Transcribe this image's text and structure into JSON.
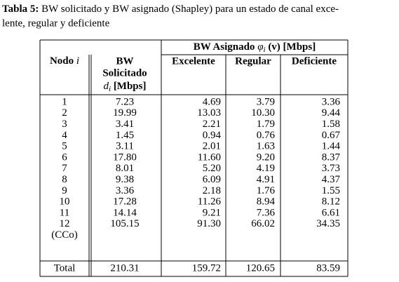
{
  "caption": {
    "label": "Tabla 5:",
    "line1": "BW solicitado y BW asignado (Shapley) para un estado de canal exce-",
    "line2": "lente, regular y deficiente"
  },
  "header": {
    "group": [
      "BW Asignado",
      "φ",
      "i",
      "(v) [Mbps]"
    ],
    "node": [
      "Nodo",
      "i"
    ],
    "bw": [
      "BW",
      "Solicitado",
      "d",
      "i",
      "[Mbps]"
    ],
    "excelente": "Excelente",
    "regular": "Regular",
    "deficiente": "Deficiente"
  },
  "rows": [
    [
      "1",
      "7.23",
      "4.69",
      "3.79",
      "3.36"
    ],
    [
      "2",
      "19.99",
      "13.03",
      "10.30",
      "9.44"
    ],
    [
      "3",
      "3.41",
      "2.21",
      "1.79",
      "1.58"
    ],
    [
      "4",
      "1.45",
      "0.94",
      "0.76",
      "0.67"
    ],
    [
      "5",
      "3.11",
      "2.01",
      "1.63",
      "1.44"
    ],
    [
      "6",
      "17.80",
      "11.60",
      "9.20",
      "8.37"
    ],
    [
      "7",
      "8.01",
      "5.20",
      "4.19",
      "3.73"
    ],
    [
      "8",
      "9.38",
      "6.09",
      "4.91",
      "4.37"
    ],
    [
      "9",
      "3.36",
      "2.18",
      "1.76",
      "1.55"
    ],
    [
      "10",
      "17.28",
      "11.26",
      "8.94",
      "8.12"
    ],
    [
      "11",
      "14.14",
      "9.21",
      "7.36",
      "6.61"
    ],
    [
      "12",
      "105.15",
      "91.30",
      "66.02",
      "34.35"
    ]
  ],
  "cco_label": "(CCo)",
  "total": [
    "Total",
    "210.31",
    "159.72",
    "120.65",
    "83.59"
  ]
}
